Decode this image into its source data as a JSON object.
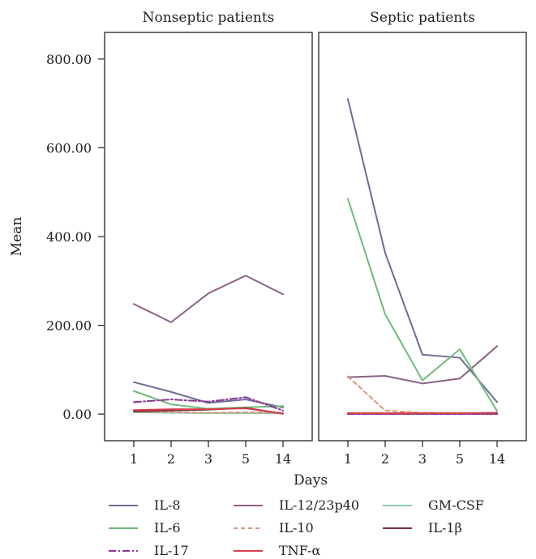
{
  "chart_data": {
    "type": "line",
    "ylabel": "Mean",
    "xlabel": "Days",
    "x_categories": [
      "1",
      "2",
      "3",
      "5",
      "14"
    ],
    "y_ticks": [
      "0.00",
      "200.00",
      "400.00",
      "600.00",
      "800.00"
    ],
    "y_tick_values": [
      0,
      200,
      400,
      600,
      800
    ],
    "ylim": [
      -60,
      860
    ],
    "legend_position": "bottom",
    "panels": [
      {
        "title": "Nonseptic patients",
        "series": [
          {
            "name": "IL-8",
            "values": [
              72,
              50,
              25,
              33,
              15
            ],
            "color": "#6f6d93",
            "dash": "solid"
          },
          {
            "name": "IL-12/23p40",
            "values": [
              248,
              207,
              272,
              312,
              270
            ],
            "color": "#8c6286",
            "dash": "solid"
          },
          {
            "name": "GM-CSF",
            "values": [
              4,
              3,
              2,
              2,
              2
            ],
            "color": "#8fcaae",
            "dash": "solid"
          },
          {
            "name": "IL-6",
            "values": [
              52,
              22,
              12,
              15,
              18
            ],
            "color": "#6dbb7a",
            "dash": "solid"
          },
          {
            "name": "IL-10",
            "values": [
              5,
              4,
              3,
              4,
              3
            ],
            "color": "#d9967b",
            "dash": "dashed"
          },
          {
            "name": "IL-1β",
            "values": [
              6,
              8,
              10,
              14,
              1
            ],
            "color": "#74323f",
            "dash": "solid"
          },
          {
            "name": "IL-17",
            "values": [
              27,
              33,
              28,
              38,
              8
            ],
            "color": "#8d3396",
            "dash": "dashdot"
          },
          {
            "name": "TNF-α",
            "values": [
              9,
              11,
              11,
              13,
              1
            ],
            "color": "#d43f4a",
            "dash": "solid"
          }
        ]
      },
      {
        "title": "Septic patients",
        "series": [
          {
            "name": "IL-8",
            "values": [
              710,
              363,
              134,
              127,
              27
            ],
            "color": "#6f6d93",
            "dash": "solid"
          },
          {
            "name": "IL-12/23p40",
            "values": [
              83,
              86,
              69,
              80,
              153
            ],
            "color": "#8c6286",
            "dash": "solid"
          },
          {
            "name": "GM-CSF",
            "values": [
              1,
              1,
              1,
              1,
              1
            ],
            "color": "#8fcaae",
            "dash": "solid"
          },
          {
            "name": "IL-6",
            "values": [
              485,
              225,
              76,
              146,
              7
            ],
            "color": "#6dbb7a",
            "dash": "solid"
          },
          {
            "name": "IL-10",
            "values": [
              85,
              8,
              3,
              2,
              2
            ],
            "color": "#d9967b",
            "dash": "dashed"
          },
          {
            "name": "IL-1β",
            "values": [
              1,
              1,
              1,
              1,
              1
            ],
            "color": "#74323f",
            "dash": "solid"
          },
          {
            "name": "IL-17",
            "values": [
              0,
              0,
              0,
              0,
              0
            ],
            "color": "#8d3396",
            "dash": "dashdot"
          },
          {
            "name": "TNF-α",
            "values": [
              2,
              2,
              2,
              2,
              3
            ],
            "color": "#d43f4a",
            "dash": "solid"
          }
        ]
      }
    ],
    "legend": [
      {
        "name": "IL-8",
        "color": "#6f6d93",
        "dash": "solid"
      },
      {
        "name": "IL-6",
        "color": "#6dbb7a",
        "dash": "solid"
      },
      {
        "name": "IL-17",
        "color": "#8d3396",
        "dash": "dashdot"
      },
      {
        "name": "IL-12/23p40",
        "color": "#8c6286",
        "dash": "solid"
      },
      {
        "name": "IL-10",
        "color": "#d9967b",
        "dash": "dashed"
      },
      {
        "name": "TNF-α",
        "color": "#d43f4a",
        "dash": "solid"
      },
      {
        "name": "GM-CSF",
        "color": "#8fcaae",
        "dash": "solid"
      },
      {
        "name": "IL-1β",
        "color": "#74323f",
        "dash": "solid"
      }
    ]
  }
}
